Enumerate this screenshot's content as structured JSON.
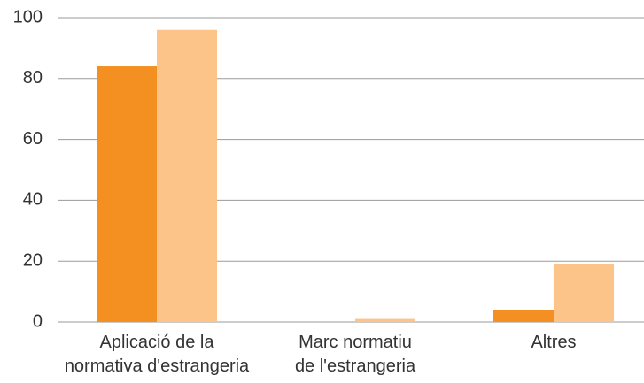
{
  "chart_data": {
    "type": "bar",
    "categories": [
      "Aplicació de la\nnormativa d'estrangeria",
      "Marc normatiu\nde l'estrangeria",
      "Altres"
    ],
    "series": [
      {
        "color": "#f39021",
        "values": [
          84,
          0,
          4
        ]
      },
      {
        "color": "#fdc48a",
        "values": [
          96,
          1,
          19
        ]
      }
    ],
    "ylim": [
      0,
      100
    ],
    "yticks": [
      0,
      20,
      40,
      60,
      80,
      100
    ],
    "grid": true
  }
}
